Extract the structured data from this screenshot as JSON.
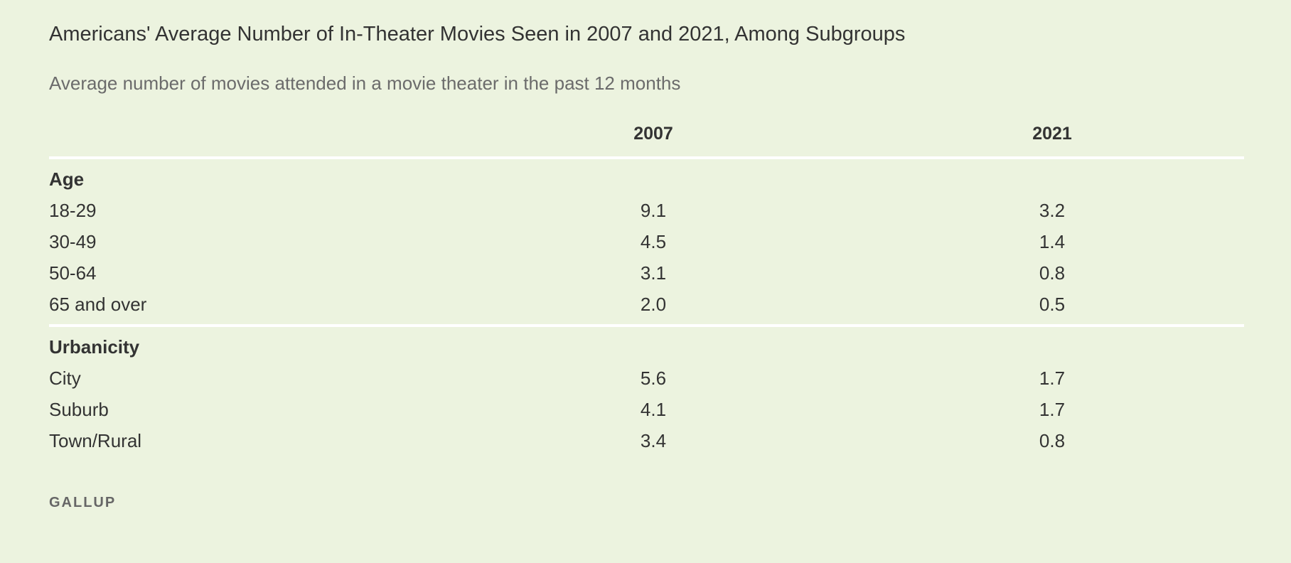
{
  "title": "Americans' Average Number of In-Theater Movies Seen in 2007 and 2021, Among Subgroups",
  "subtitle": "Average number of movies attended in a movie theater in the past 12 months",
  "source": "GALLUP",
  "chart_data": {
    "type": "table",
    "title": "Americans' Average Number of In-Theater Movies Seen in 2007 and 2021, Among Subgroups",
    "subtitle": "Average number of movies attended in a movie theater in the past 12 months",
    "columns": [
      "2007",
      "2021"
    ],
    "groups": [
      {
        "name": "Age",
        "rows": [
          {
            "label": "18-29",
            "values": [
              "9.1",
              "3.2"
            ]
          },
          {
            "label": "30-49",
            "values": [
              "4.5",
              "1.4"
            ]
          },
          {
            "label": "50-64",
            "values": [
              "3.1",
              "0.8"
            ]
          },
          {
            "label": "65 and over",
            "values": [
              "2.0",
              "0.5"
            ]
          }
        ]
      },
      {
        "name": "Urbanicity",
        "rows": [
          {
            "label": "City",
            "values": [
              "5.6",
              "1.7"
            ]
          },
          {
            "label": "Suburb",
            "values": [
              "4.1",
              "1.7"
            ]
          },
          {
            "label": "Town/Rural",
            "values": [
              "3.4",
              "0.8"
            ]
          }
        ]
      }
    ]
  }
}
